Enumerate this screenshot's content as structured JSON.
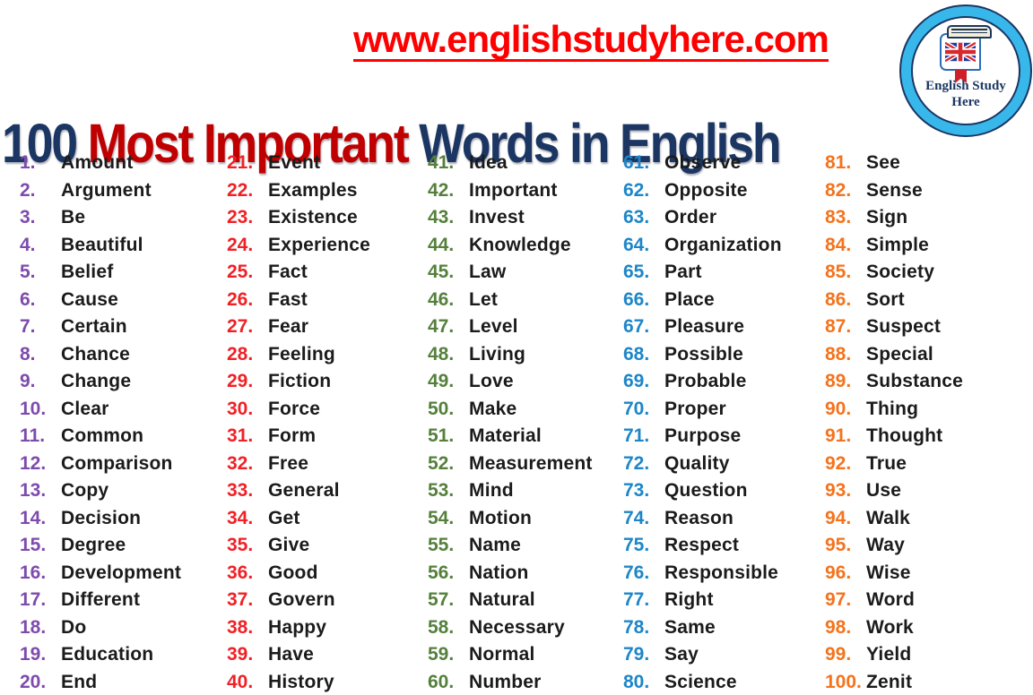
{
  "colors": {
    "title_navy": "#1B3663",
    "title_red": "#C00000",
    "url_red": "#FF0000",
    "word_color": "#1B1B1B",
    "logo_ring_blue": "#38B8EA",
    "logo_navy": "#1B3663",
    "col_purple": "#7E4BAD",
    "col_red": "#F02126",
    "col_green": "#55803C",
    "col_blue": "#1D86C8",
    "col_orange": "#F4731D"
  },
  "header": {
    "url": "www.englishstudyhere.com",
    "title": {
      "part1": "100 ",
      "part2": "Most Important ",
      "part3": "Words in English"
    }
  },
  "logo": {
    "line1": "English Study",
    "line2": "Here"
  },
  "columns": [
    {
      "name": "column-1",
      "number_color_key": "col_purple",
      "items": [
        [
          "1.",
          "Amount"
        ],
        [
          "2.",
          "Argument"
        ],
        [
          "3.",
          "Be"
        ],
        [
          "4.",
          "Beautiful"
        ],
        [
          "5.",
          "Belief"
        ],
        [
          "6.",
          "Cause"
        ],
        [
          "7.",
          "Certain"
        ],
        [
          "8.",
          "Chance"
        ],
        [
          "9.",
          "Change"
        ],
        [
          "10.",
          "Clear"
        ],
        [
          "11.",
          "Common"
        ],
        [
          "12.",
          "Comparison"
        ],
        [
          "13.",
          "Copy"
        ],
        [
          "14.",
          "Decision"
        ],
        [
          "15.",
          "Degree"
        ],
        [
          "16.",
          "Development"
        ],
        [
          "17.",
          "Different"
        ],
        [
          "18.",
          "Do"
        ],
        [
          "19.",
          "Education"
        ],
        [
          "20.",
          "End"
        ]
      ]
    },
    {
      "name": "column-2",
      "number_color_key": "col_red",
      "items": [
        [
          "21.",
          "Event"
        ],
        [
          "22.",
          "Examples"
        ],
        [
          "23.",
          "Existence"
        ],
        [
          "24.",
          "Experience"
        ],
        [
          "25.",
          "Fact"
        ],
        [
          "26.",
          "Fast"
        ],
        [
          "27.",
          "Fear"
        ],
        [
          "28.",
          "Feeling"
        ],
        [
          "29.",
          "Fiction"
        ],
        [
          "30.",
          "Force"
        ],
        [
          "31.",
          "Form"
        ],
        [
          "32.",
          "Free"
        ],
        [
          "33.",
          "General"
        ],
        [
          "34.",
          "Get"
        ],
        [
          "35.",
          "Give"
        ],
        [
          "36.",
          "Good"
        ],
        [
          "37.",
          "Govern"
        ],
        [
          "38.",
          "Happy"
        ],
        [
          "39.",
          "Have"
        ],
        [
          "40.",
          "History"
        ]
      ]
    },
    {
      "name": "column-3",
      "number_color_key": "col_green",
      "items": [
        [
          "41.",
          "Idea"
        ],
        [
          "42.",
          "Important"
        ],
        [
          "43.",
          "Invest"
        ],
        [
          "44.",
          "Knowledge"
        ],
        [
          "45.",
          "Law"
        ],
        [
          "46.",
          "Let"
        ],
        [
          "47.",
          "Level"
        ],
        [
          "48.",
          "Living"
        ],
        [
          "49.",
          "Love"
        ],
        [
          "50.",
          "Make"
        ],
        [
          "51.",
          "Material"
        ],
        [
          "52.",
          "Measurement"
        ],
        [
          "53.",
          "Mind"
        ],
        [
          "54.",
          "Motion"
        ],
        [
          "55.",
          "Name"
        ],
        [
          "56.",
          "Nation"
        ],
        [
          "57.",
          "Natural"
        ],
        [
          "58.",
          "Necessary"
        ],
        [
          "59.",
          "Normal"
        ],
        [
          "60.",
          "Number"
        ]
      ]
    },
    {
      "name": "column-4",
      "number_color_key": "col_blue",
      "items": [
        [
          "61.",
          "Observe"
        ],
        [
          "62.",
          "Opposite"
        ],
        [
          "63.",
          "Order"
        ],
        [
          "64.",
          "Organization"
        ],
        [
          "65.",
          "Part"
        ],
        [
          "66.",
          "Place"
        ],
        [
          "67.",
          "Pleasure"
        ],
        [
          "68.",
          "Possible"
        ],
        [
          "69.",
          "Probable"
        ],
        [
          "70.",
          "Proper"
        ],
        [
          "71.",
          "Purpose"
        ],
        [
          "72.",
          "Quality"
        ],
        [
          "73.",
          "Question"
        ],
        [
          "74.",
          "Reason"
        ],
        [
          "75.",
          "Respect"
        ],
        [
          "76.",
          "Responsible"
        ],
        [
          "77.",
          "Right"
        ],
        [
          "78.",
          "Same"
        ],
        [
          "79.",
          "Say"
        ],
        [
          "80.",
          "Science"
        ]
      ]
    },
    {
      "name": "column-5",
      "number_color_key": "col_orange",
      "items": [
        [
          "81.",
          "See"
        ],
        [
          "82.",
          "Sense"
        ],
        [
          "83.",
          "Sign"
        ],
        [
          "84.",
          "Simple"
        ],
        [
          "85.",
          "Society"
        ],
        [
          "86.",
          "Sort"
        ],
        [
          "87.",
          "Suspect"
        ],
        [
          "88.",
          "Special"
        ],
        [
          "89.",
          "Substance"
        ],
        [
          "90.",
          "Thing"
        ],
        [
          "91.",
          "Thought"
        ],
        [
          "92.",
          "True"
        ],
        [
          "93.",
          "Use"
        ],
        [
          "94.",
          "Walk"
        ],
        [
          "95.",
          "Way"
        ],
        [
          "96.",
          "Wise"
        ],
        [
          "97.",
          "Word"
        ],
        [
          "98.",
          "Work"
        ],
        [
          "99.",
          "Yield"
        ],
        [
          "100.",
          "Zenit"
        ]
      ]
    }
  ]
}
